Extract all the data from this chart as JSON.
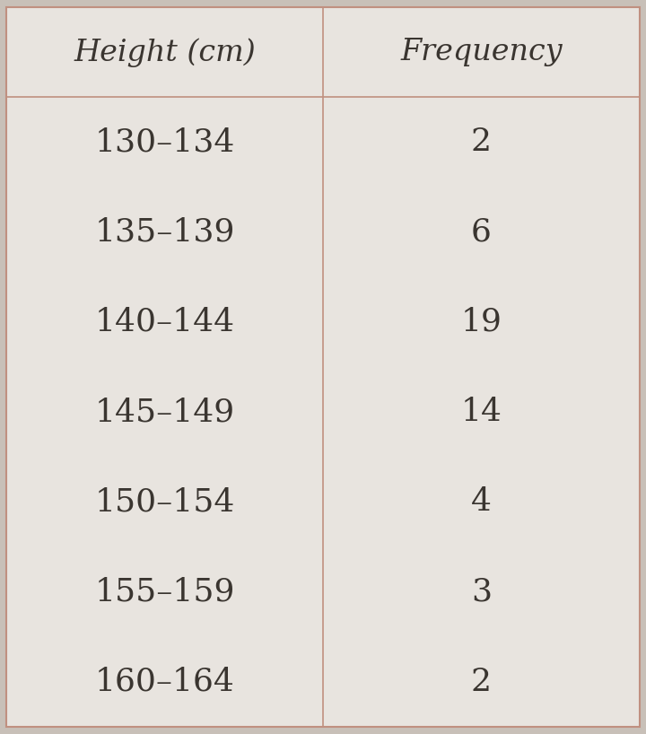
{
  "col_headers": [
    "Height (cm)",
    "Frequency"
  ],
  "rows": [
    [
      "130–134",
      "2"
    ],
    [
      "135–139",
      "6"
    ],
    [
      "140–144",
      "19"
    ],
    [
      "145–149",
      "14"
    ],
    [
      "150–154",
      "4"
    ],
    [
      "155–159",
      "3"
    ],
    [
      "160–164",
      "2"
    ]
  ],
  "background_color": "#c8c0b8",
  "table_bg_color": "#e8e4df",
  "border_color": "#c09080",
  "text_color": "#3a3530",
  "header_fontsize": 24,
  "cell_fontsize": 26,
  "fig_width": 7.2,
  "fig_height": 8.18
}
